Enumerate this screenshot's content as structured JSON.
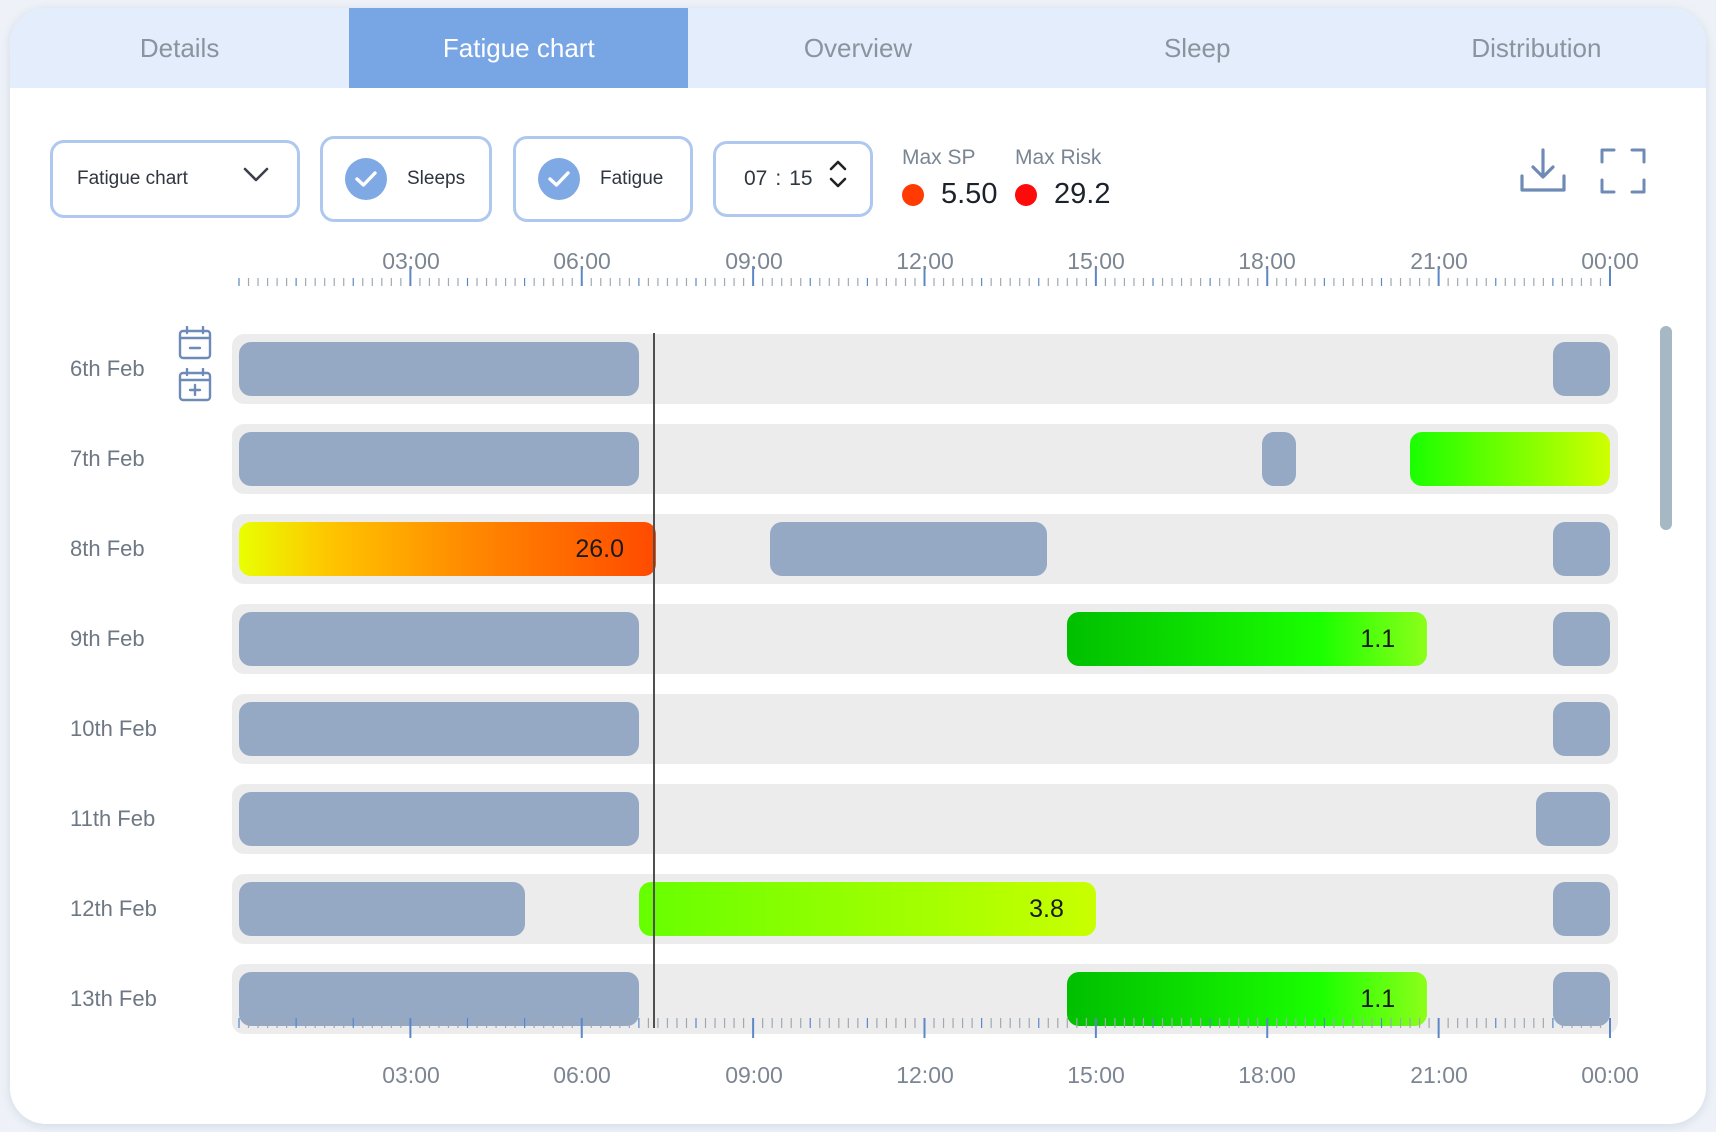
{
  "tabs": [
    {
      "label": "Details",
      "active": false
    },
    {
      "label": "Fatigue chart",
      "active": true
    },
    {
      "label": "Overview",
      "active": false
    },
    {
      "label": "Sleep",
      "active": false
    },
    {
      "label": "Distribution",
      "active": false
    }
  ],
  "toolbar": {
    "view_select": {
      "value": "Fatigue chart",
      "icon": "chevron-down-icon"
    },
    "sleeps_toggle": {
      "label": "Sleeps",
      "checked": true
    },
    "fatigue_toggle": {
      "label": "Fatigue",
      "checked": true
    },
    "time": {
      "hours": "07",
      "separator": ":",
      "minutes": "15"
    },
    "max_sp": {
      "label": "Max SP",
      "value": "5.50",
      "color": "#ff3b00"
    },
    "max_risk": {
      "label": "Max Risk",
      "value": "29.2",
      "color": "#ff0a0a"
    },
    "download_icon": "download-icon",
    "fullscreen_icon": "fullscreen-icon"
  },
  "axis": {
    "ticks": [
      "03:00",
      "06:00",
      "09:00",
      "12:00",
      "15:00",
      "18:00",
      "21:00",
      "00:00"
    ]
  },
  "current_time_hours": 7.25,
  "rows": [
    {
      "label": "6th Feb",
      "blocks": [
        {
          "kind": "sleep",
          "start": 0,
          "end": 7.0
        },
        {
          "kind": "sleep",
          "start": 23.0,
          "end": 24.0
        }
      ]
    },
    {
      "label": "7th Feb",
      "blocks": [
        {
          "kind": "sleep",
          "start": 0,
          "end": 7.0
        },
        {
          "kind": "sleep",
          "start": 17.9,
          "end": 18.5
        },
        {
          "kind": "fatigue",
          "style": "f-green-a",
          "start": 20.5,
          "end": 24.0,
          "value": ""
        }
      ]
    },
    {
      "label": "8th Feb",
      "blocks": [
        {
          "kind": "fatigue",
          "style": "f-red",
          "start": 0,
          "end": 7.3,
          "value": "26.0"
        },
        {
          "kind": "sleep",
          "start": 9.3,
          "end": 14.15
        },
        {
          "kind": "sleep",
          "start": 23.0,
          "end": 24.0
        }
      ]
    },
    {
      "label": "9th Feb",
      "blocks": [
        {
          "kind": "sleep",
          "start": 0,
          "end": 7.0
        },
        {
          "kind": "fatigue",
          "style": "f-green-b",
          "start": 14.5,
          "end": 20.8,
          "value": "1.1"
        },
        {
          "kind": "sleep",
          "start": 23.0,
          "end": 24.0
        }
      ]
    },
    {
      "label": "10th Feb",
      "blocks": [
        {
          "kind": "sleep",
          "start": 0,
          "end": 7.0
        },
        {
          "kind": "sleep",
          "start": 23.0,
          "end": 24.0
        }
      ]
    },
    {
      "label": "11th Feb",
      "blocks": [
        {
          "kind": "sleep",
          "start": 0,
          "end": 7.0
        },
        {
          "kind": "sleep",
          "start": 22.7,
          "end": 24.0
        }
      ]
    },
    {
      "label": "12th Feb",
      "blocks": [
        {
          "kind": "sleep",
          "start": 0,
          "end": 5.0
        },
        {
          "kind": "fatigue",
          "style": "f-lime",
          "start": 7.0,
          "end": 15.0,
          "value": "3.8"
        },
        {
          "kind": "sleep",
          "start": 23.0,
          "end": 24.0
        }
      ]
    },
    {
      "label": "13th Feb",
      "blocks": [
        {
          "kind": "sleep",
          "start": 0,
          "end": 7.0
        },
        {
          "kind": "fatigue",
          "style": "f-green-b",
          "start": 14.5,
          "end": 20.8,
          "value": "1.1"
        },
        {
          "kind": "sleep",
          "start": 23.0,
          "end": 24.0
        }
      ]
    }
  ]
}
